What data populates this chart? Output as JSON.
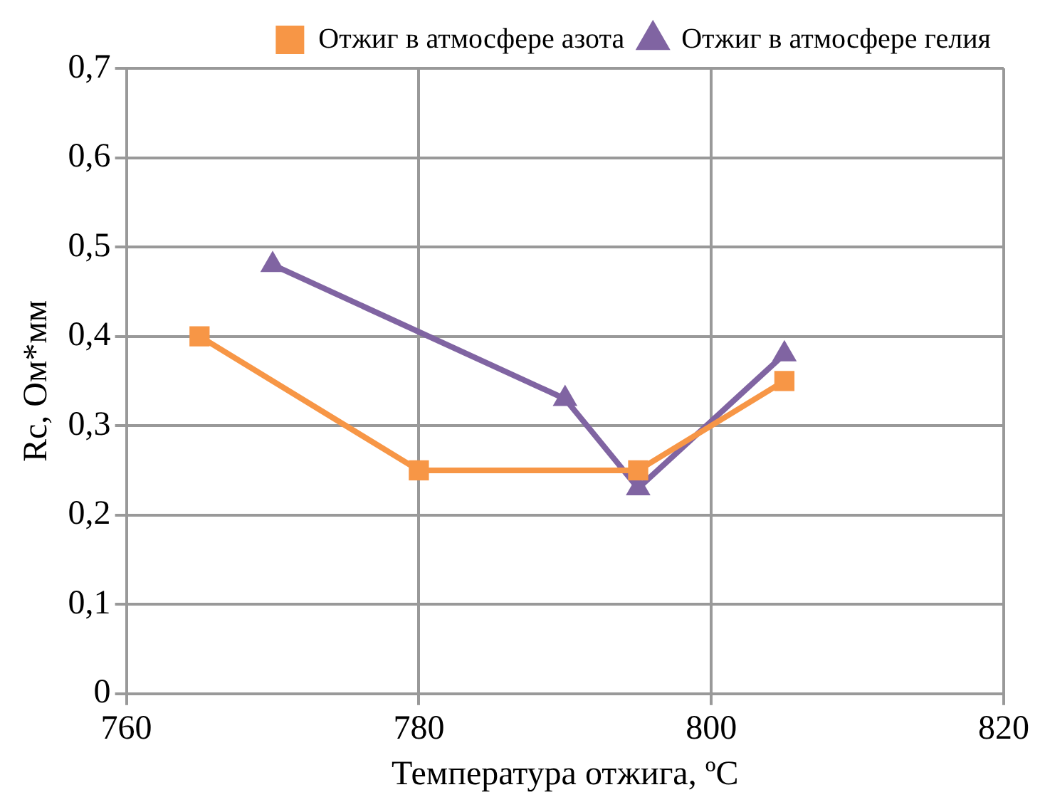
{
  "chart_data": {
    "type": "line",
    "xlabel": "Температура отжига, ºС",
    "ylabel": "Rc, Ом*мм",
    "series": [
      {
        "name": "Отжиг в атмосфере азота",
        "color": "#f79646",
        "x": [
          765,
          780,
          795,
          805
        ],
        "values": [
          0.4,
          0.25,
          0.25,
          0.35
        ],
        "marker": "square"
      },
      {
        "name": "Отжиг в атмосфере гелия",
        "color": "#8064a2",
        "x": [
          770,
          790,
          795,
          805
        ],
        "values": [
          0.48,
          0.33,
          0.23,
          0.38
        ],
        "marker": "triangle"
      }
    ],
    "xlim": [
      760,
      820
    ],
    "xticks": [
      760,
      780,
      800,
      820
    ],
    "ylim": [
      0,
      0.7
    ],
    "yticks": [
      {
        "value": 0,
        "label": "0"
      },
      {
        "value": 0.1,
        "label": "0,1"
      },
      {
        "value": 0.2,
        "label": "0,2"
      },
      {
        "value": 0.3,
        "label": "0,3"
      },
      {
        "value": 0.4,
        "label": "0,4"
      },
      {
        "value": 0.5,
        "label": "0,5"
      },
      {
        "value": 0.6,
        "label": "0,6"
      },
      {
        "value": 0.7,
        "label": "0,7"
      }
    ],
    "grid": true,
    "legend": "top right",
    "line_style": "solid"
  }
}
